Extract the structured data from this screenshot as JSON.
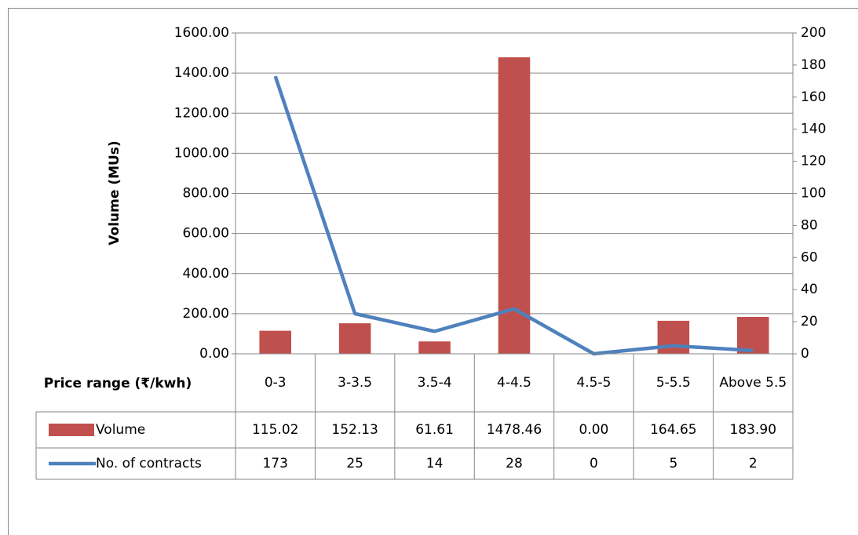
{
  "chart_data": {
    "type": "bar",
    "x_label": "Price range (₹/kwh)",
    "y_label": "Volume (MUs)",
    "categories": [
      "0-3",
      "3-3.5",
      "3.5-4",
      "4-4.5",
      "4.5-5",
      "5-5.5",
      "Above 5.5"
    ],
    "series": [
      {
        "name": "Volume",
        "type": "bar",
        "color": "#c0504d",
        "values": [
          115.02,
          152.13,
          61.61,
          1478.46,
          0,
          164.65,
          183.9
        ],
        "value_labels": [
          "115.02",
          "152.13",
          "61.61",
          "1478.46",
          "0.00",
          "164.65",
          "183.90"
        ]
      },
      {
        "name": "No. of contracts",
        "type": "line",
        "color": "#4f81bd",
        "axis": "y2",
        "values": [
          173,
          25,
          14,
          28,
          0,
          5,
          2
        ]
      }
    ],
    "ylim": [
      0,
      1600
    ],
    "yticks": [
      {
        "value": 0,
        "label": "0.00"
      },
      {
        "value": 200,
        "label": "200.00"
      },
      {
        "value": 400,
        "label": "400.00"
      },
      {
        "value": 600,
        "label": "600.00"
      },
      {
        "value": 800,
        "label": "800.00"
      },
      {
        "value": 1000,
        "label": "1000.00"
      },
      {
        "value": 1200,
        "label": "1200.00"
      },
      {
        "value": 1400,
        "label": "1400.00"
      },
      {
        "value": 1600,
        "label": "1600.00"
      }
    ],
    "y2lim": [
      0,
      200
    ],
    "y2ticks": [
      0,
      20,
      40,
      60,
      80,
      100,
      120,
      140,
      160,
      180,
      200
    ],
    "grid": true,
    "data_table": true
  }
}
